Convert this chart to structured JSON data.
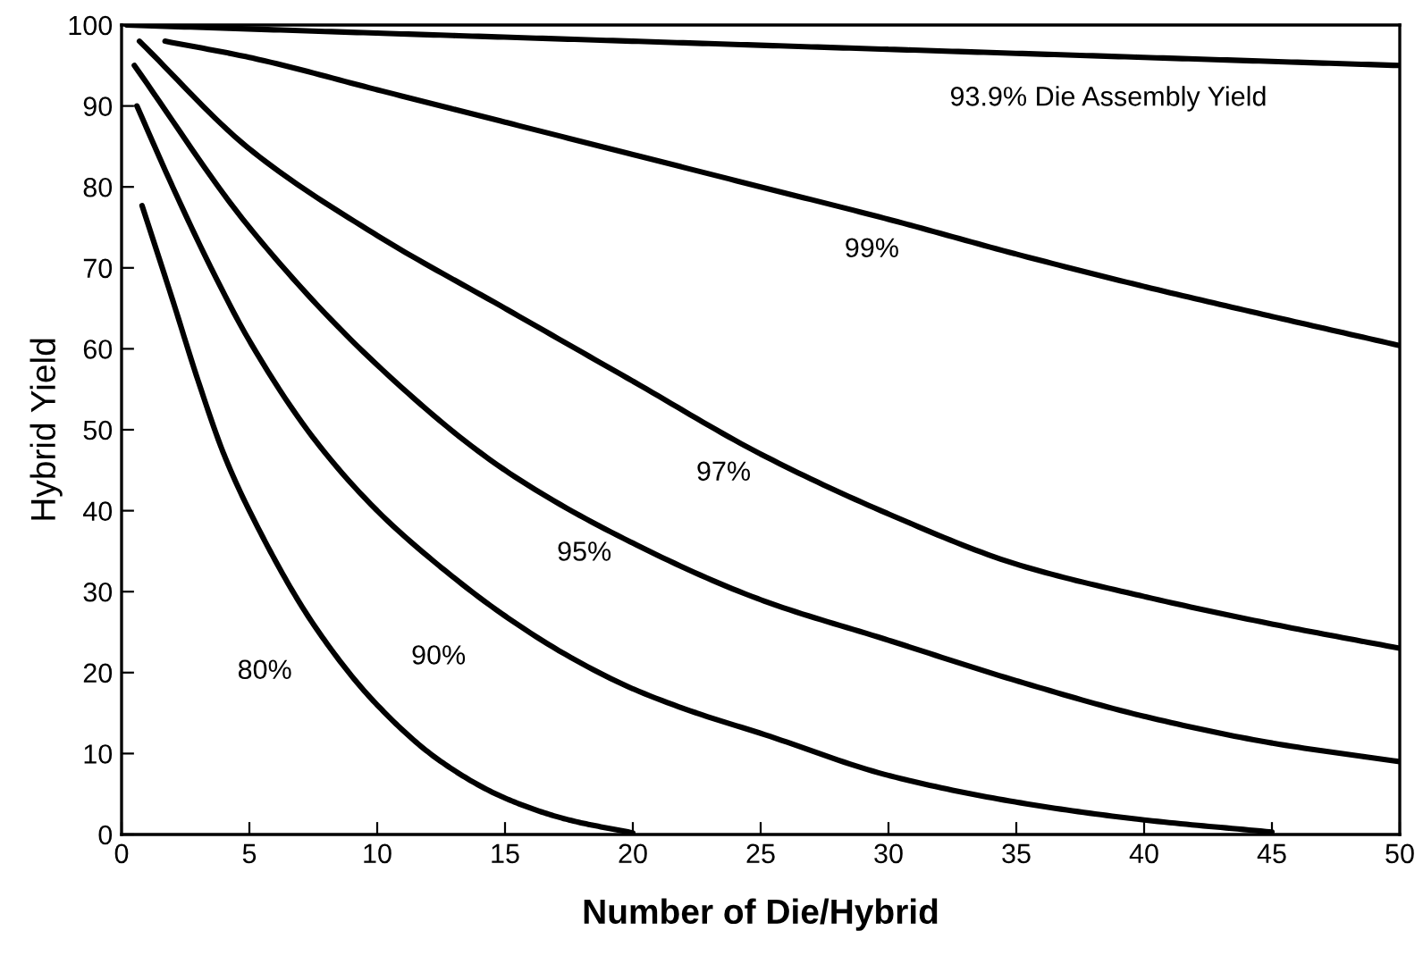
{
  "chart_data": {
    "type": "line",
    "xlabel": "Number of Die/Hybrid",
    "ylabel": "Hybrid Yield",
    "xlim": [
      0,
      50
    ],
    "ylim": [
      0,
      100
    ],
    "xticks": [
      0,
      5,
      10,
      15,
      20,
      25,
      30,
      35,
      40,
      45,
      50
    ],
    "yticks": [
      0,
      10,
      20,
      30,
      40,
      50,
      60,
      70,
      80,
      90,
      100
    ],
    "grid": false,
    "legend": false,
    "marker": "none",
    "line_style": "solid",
    "series": [
      {
        "name": "93.9% Die Assembly Yield",
        "color": "#000000",
        "x": [
          0.2,
          10,
          20,
          30,
          40,
          50
        ],
        "values": [
          100,
          99,
          98,
          97,
          96,
          95
        ]
      },
      {
        "name": "99%",
        "color": "#000000",
        "x": [
          1.7,
          5,
          10,
          15,
          20,
          25,
          30,
          35,
          40,
          45,
          50
        ],
        "values": [
          98,
          96,
          92,
          88,
          84,
          80,
          76,
          71.7,
          67.7,
          64,
          60.4
        ]
      },
      {
        "name": "97%",
        "color": "#000000",
        "x": [
          0.7,
          5,
          10,
          15,
          20,
          25,
          30,
          35,
          40,
          45,
          50
        ],
        "values": [
          98,
          84.7,
          74,
          65,
          56,
          47,
          39.6,
          33.4,
          29.4,
          26,
          23
        ]
      },
      {
        "name": "95%",
        "color": "#000000",
        "x": [
          0.5,
          5,
          10,
          15,
          20,
          25,
          30,
          35,
          40,
          45,
          50
        ],
        "values": [
          95,
          75,
          58,
          45,
          36,
          29,
          24,
          19,
          14.6,
          11.3,
          9
        ]
      },
      {
        "name": "90%",
        "color": "#000000",
        "x": [
          0.6,
          2,
          3.5,
          5,
          7.5,
          10,
          12.5,
          15,
          17.5,
          20,
          22.5,
          25,
          30,
          35,
          40,
          45
        ],
        "values": [
          90,
          80,
          70,
          61,
          49,
          40,
          33,
          27,
          22,
          18,
          15,
          12.5,
          7.3,
          4,
          1.8,
          0.3
        ]
      },
      {
        "name": "80%",
        "color": "#000000",
        "x": [
          0.8,
          2,
          3,
          4,
          5,
          7.5,
          10,
          12.5,
          15,
          17.5,
          20
        ],
        "values": [
          77.7,
          66,
          56,
          47,
          40,
          26,
          16,
          9,
          4.5,
          1.8,
          0.2
        ]
      }
    ]
  }
}
